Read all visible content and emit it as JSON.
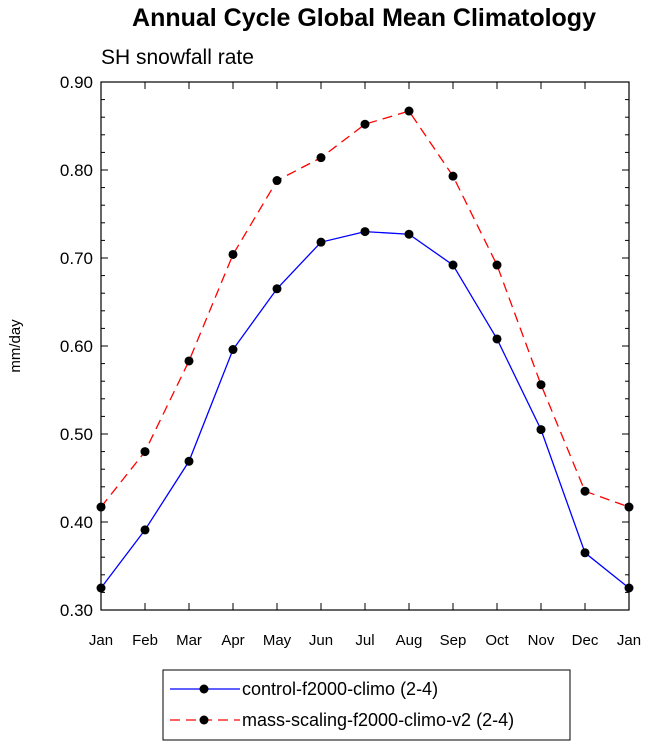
{
  "chart_data": {
    "type": "line",
    "title": "Annual Cycle Global Mean Climatology",
    "subtitle": "SH snowfall rate",
    "xlabel": "",
    "ylabel": "mm/day",
    "ylim": [
      0.3,
      0.9
    ],
    "ytick_labels": [
      "0.30",
      "0.40",
      "0.50",
      "0.60",
      "0.70",
      "0.80",
      "0.90"
    ],
    "categories": [
      "Jan",
      "Feb",
      "Mar",
      "Apr",
      "May",
      "Jun",
      "Jul",
      "Aug",
      "Sep",
      "Oct",
      "Nov",
      "Dec",
      "Jan"
    ],
    "series": [
      {
        "name": "control-f2000-climo (2-4)",
        "color": "#0000ff",
        "dash": "solid",
        "values": [
          0.325,
          0.391,
          0.469,
          0.596,
          0.665,
          0.718,
          0.73,
          0.727,
          0.692,
          0.608,
          0.505,
          0.365,
          0.325
        ]
      },
      {
        "name": "mass-scaling-f2000-climo-v2 (2-4)",
        "color": "#ff0000",
        "dash": "dashed",
        "values": [
          0.417,
          0.48,
          0.583,
          0.704,
          0.788,
          0.814,
          0.852,
          0.867,
          0.793,
          0.692,
          0.556,
          0.435,
          0.417
        ]
      }
    ],
    "legend_position": "bottom"
  }
}
